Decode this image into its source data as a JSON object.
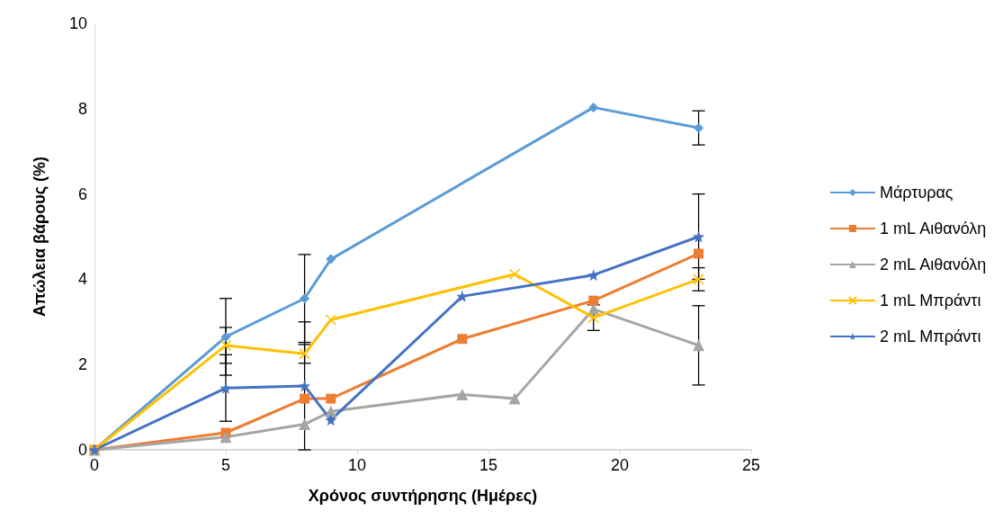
{
  "chart_data": {
    "type": "line",
    "xlabel": "Χρόνος συντήρησης (Ημέρες)",
    "ylabel": "Απώλεια βάρους (%)",
    "xlim": [
      0,
      25
    ],
    "xticks": [
      0,
      5,
      10,
      15,
      20,
      25
    ],
    "ylim": [
      0,
      10
    ],
    "yticks": [
      0,
      2,
      4,
      6,
      8,
      10
    ],
    "grid": false,
    "legend": "right",
    "series": [
      {
        "name": "Μάρτυρας",
        "color": "#5b9bd5",
        "marker": "diamond",
        "x": [
          0,
          5,
          8,
          9,
          19,
          23
        ],
        "values": [
          0,
          2.65,
          3.55,
          4.47,
          8.03,
          7.55
        ],
        "errors": [
          null,
          0.9,
          1.03,
          null,
          null,
          0.4
        ]
      },
      {
        "name": "1 mL Αιθανόλη",
        "color": "#ed7d31",
        "marker": "square",
        "x": [
          0,
          5,
          8,
          9,
          14,
          19,
          23
        ],
        "values": [
          0,
          0.4,
          1.2,
          1.2,
          2.6,
          3.5,
          4.6
        ]
      },
      {
        "name": "2 mL Αιθανόλη",
        "color": "#a5a5a5",
        "marker": "triangle",
        "x": [
          0,
          5,
          8,
          9,
          14,
          16,
          19,
          23
        ],
        "values": [
          0,
          0.3,
          0.6,
          0.9,
          1.3,
          1.2,
          3.3,
          2.45
        ],
        "errors": [
          null,
          null,
          null,
          null,
          null,
          null,
          null,
          0.93
        ]
      },
      {
        "name": "1 mL Μπράντι",
        "color": "#ffc000",
        "marker": "cross",
        "x": [
          0,
          5,
          8,
          9,
          16,
          19,
          23
        ],
        "values": [
          0,
          2.45,
          2.25,
          3.05,
          4.12,
          3.1,
          4.0
        ],
        "errors": [
          null,
          0.42,
          0.22,
          null,
          null,
          0.3,
          0.27
        ]
      },
      {
        "name": "2 mL Μπράντι",
        "color": "#4472c4",
        "marker": "star",
        "x": [
          0,
          5,
          8,
          9,
          14,
          19,
          23
        ],
        "values": [
          0,
          1.45,
          1.5,
          0.7,
          3.6,
          4.1,
          5.0
        ],
        "errors": [
          null,
          0.78,
          1.5,
          null,
          null,
          null,
          1.0
        ]
      }
    ]
  }
}
